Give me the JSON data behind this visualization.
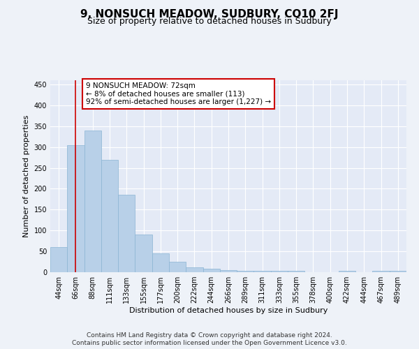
{
  "title": "9, NONSUCH MEADOW, SUDBURY, CO10 2FJ",
  "subtitle": "Size of property relative to detached houses in Sudbury",
  "xlabel": "Distribution of detached houses by size in Sudbury",
  "ylabel": "Number of detached properties",
  "categories": [
    "44sqm",
    "66sqm",
    "88sqm",
    "111sqm",
    "133sqm",
    "155sqm",
    "177sqm",
    "200sqm",
    "222sqm",
    "244sqm",
    "266sqm",
    "289sqm",
    "311sqm",
    "333sqm",
    "355sqm",
    "378sqm",
    "400sqm",
    "422sqm",
    "444sqm",
    "467sqm",
    "489sqm"
  ],
  "values": [
    60,
    305,
    340,
    270,
    185,
    90,
    45,
    25,
    12,
    8,
    5,
    3,
    3,
    3,
    3,
    0,
    0,
    3,
    0,
    3,
    3
  ],
  "bar_color": "#b8d0e8",
  "bar_edge_color": "#8ab4d4",
  "vline_x": 1,
  "vline_color": "#cc0000",
  "annotation_text": "9 NONSUCH MEADOW: 72sqm\n← 8% of detached houses are smaller (113)\n92% of semi-detached houses are larger (1,227) →",
  "annotation_box_color": "#ffffff",
  "annotation_box_edge_color": "#cc0000",
  "ylim": [
    0,
    460
  ],
  "yticks": [
    0,
    50,
    100,
    150,
    200,
    250,
    300,
    350,
    400,
    450
  ],
  "footer_line1": "Contains HM Land Registry data © Crown copyright and database right 2024.",
  "footer_line2": "Contains public sector information licensed under the Open Government Licence v3.0.",
  "bg_color": "#eef2f8",
  "plot_bg_color": "#e4eaf6",
  "grid_color": "#ffffff",
  "title_fontsize": 11,
  "subtitle_fontsize": 9,
  "axis_label_fontsize": 8,
  "tick_fontsize": 7,
  "annotation_fontsize": 7.5,
  "footer_fontsize": 6.5
}
